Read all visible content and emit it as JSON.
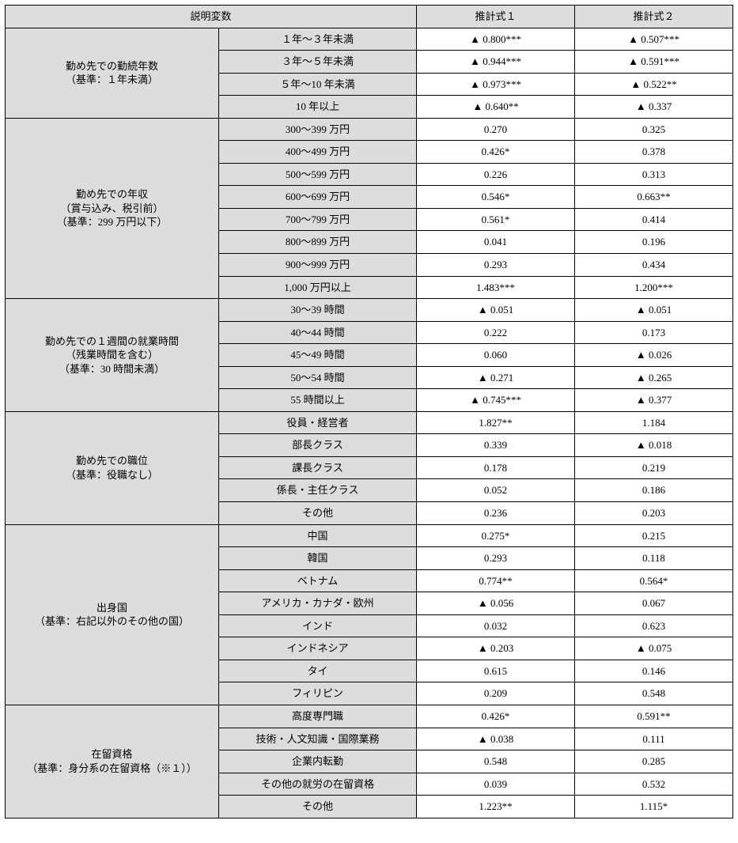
{
  "header": {
    "explanatory": "説明変数",
    "est1": "推計式１",
    "est2": "推計式２"
  },
  "groups": [
    {
      "label": "勤め先での勤続年数\n（基準：１年未満）",
      "rows": [
        {
          "sub": "１年～３年未満",
          "v1": "0.800***",
          "n1": true,
          "v2": "0.507***",
          "n2": true
        },
        {
          "sub": "３年～５年未満",
          "v1": "0.944***",
          "n1": true,
          "v2": "0.591***",
          "n2": true
        },
        {
          "sub": "５年～10 年未満",
          "v1": "0.973***",
          "n1": true,
          "v2": "0.522**",
          "n2": true
        },
        {
          "sub": "10 年以上",
          "v1": "0.640**",
          "n1": true,
          "v2": "0.337",
          "n2": true
        }
      ]
    },
    {
      "label": "勤め先での年収\n（賞与込み、税引前）\n（基準：299 万円以下）",
      "rows": [
        {
          "sub": "300～399 万円",
          "v1": "0.270",
          "n1": false,
          "v2": "0.325",
          "n2": false
        },
        {
          "sub": "400～499 万円",
          "v1": "0.426*",
          "n1": false,
          "v2": "0.378",
          "n2": false
        },
        {
          "sub": "500～599 万円",
          "v1": "0.226",
          "n1": false,
          "v2": "0.313",
          "n2": false
        },
        {
          "sub": "600～699 万円",
          "v1": "0.546*",
          "n1": false,
          "v2": "0.663**",
          "n2": false
        },
        {
          "sub": "700～799 万円",
          "v1": "0.561*",
          "n1": false,
          "v2": "0.414",
          "n2": false
        },
        {
          "sub": "800～899 万円",
          "v1": "0.041",
          "n1": false,
          "v2": "0.196",
          "n2": false
        },
        {
          "sub": "900～999 万円",
          "v1": "0.293",
          "n1": false,
          "v2": "0.434",
          "n2": false
        },
        {
          "sub": "1,000 万円以上",
          "v1": "1.483***",
          "n1": false,
          "v2": "1.200***",
          "n2": false
        }
      ]
    },
    {
      "label": "勤め先での１週間の就業時間\n（残業時間を含む）\n（基準：30 時間未満）",
      "rows": [
        {
          "sub": "30～39 時間",
          "v1": "0.051",
          "n1": true,
          "v2": "0.051",
          "n2": true
        },
        {
          "sub": "40～44 時間",
          "v1": "0.222",
          "n1": false,
          "v2": "0.173",
          "n2": false
        },
        {
          "sub": "45～49 時間",
          "v1": "0.060",
          "n1": false,
          "v2": "0.026",
          "n2": true
        },
        {
          "sub": "50～54 時間",
          "v1": "0.271",
          "n1": true,
          "v2": "0.265",
          "n2": true
        },
        {
          "sub": "55 時間以上",
          "v1": "0.745***",
          "n1": true,
          "v2": "0.377",
          "n2": true
        }
      ]
    },
    {
      "label": "勤め先での職位\n（基準：役職なし）",
      "rows": [
        {
          "sub": "役員・経営者",
          "v1": "1.827**",
          "n1": false,
          "v2": "1.184",
          "n2": false
        },
        {
          "sub": "部長クラス",
          "v1": "0.339",
          "n1": false,
          "v2": "0.018",
          "n2": true
        },
        {
          "sub": "課長クラス",
          "v1": "0.178",
          "n1": false,
          "v2": "0.219",
          "n2": false
        },
        {
          "sub": "係長・主任クラス",
          "v1": "0.052",
          "n1": false,
          "v2": "0.186",
          "n2": false
        },
        {
          "sub": "その他",
          "v1": "0.236",
          "n1": false,
          "v2": "0.203",
          "n2": false
        }
      ]
    },
    {
      "label": "出身国\n（基準：右記以外のその他の国）",
      "rows": [
        {
          "sub": "中国",
          "v1": "0.275*",
          "n1": false,
          "v2": "0.215",
          "n2": false
        },
        {
          "sub": "韓国",
          "v1": "0.293",
          "n1": false,
          "v2": "0.118",
          "n2": false
        },
        {
          "sub": "ベトナム",
          "v1": "0.774**",
          "n1": false,
          "v2": "0.564*",
          "n2": false
        },
        {
          "sub": "アメリカ・カナダ・欧州",
          "v1": "0.056",
          "n1": true,
          "v2": "0.067",
          "n2": false
        },
        {
          "sub": "インド",
          "v1": "0.032",
          "n1": false,
          "v2": "0.623",
          "n2": false
        },
        {
          "sub": "インドネシア",
          "v1": "0.203",
          "n1": true,
          "v2": "0.075",
          "n2": true
        },
        {
          "sub": "タイ",
          "v1": "0.615",
          "n1": false,
          "v2": "0.146",
          "n2": false
        },
        {
          "sub": "フィリピン",
          "v1": "0.209",
          "n1": false,
          "v2": "0.548",
          "n2": false
        }
      ]
    },
    {
      "label": "在留資格\n（基準：身分系の在留資格（※１））",
      "rows": [
        {
          "sub": "高度専門職",
          "v1": "0.426*",
          "n1": false,
          "v2": "0.591**",
          "n2": false
        },
        {
          "sub": "技術・人文知識・国際業務",
          "v1": "0.038",
          "n1": true,
          "v2": "0.111",
          "n2": false
        },
        {
          "sub": "企業内転勤",
          "v1": "0.548",
          "n1": false,
          "v2": "0.285",
          "n2": false
        },
        {
          "sub": "その他の就労の在留資格",
          "v1": "0.039",
          "n1": false,
          "v2": "0.532",
          "n2": false
        },
        {
          "sub": "その他",
          "v1": "1.223**",
          "n1": false,
          "v2": "1.115*",
          "n2": false
        }
      ]
    }
  ]
}
